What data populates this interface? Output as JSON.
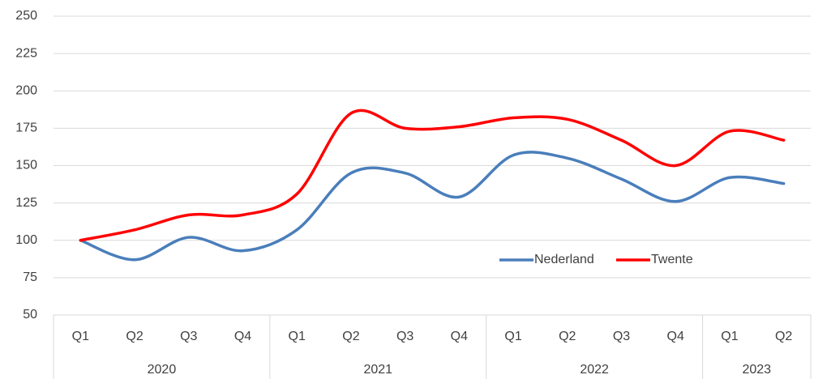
{
  "chart_data": {
    "type": "line",
    "category_groups": [
      {
        "label": "2020",
        "categories": [
          "Q1",
          "Q2",
          "Q3",
          "Q4"
        ]
      },
      {
        "label": "2021",
        "categories": [
          "Q1",
          "Q2",
          "Q3",
          "Q4"
        ]
      },
      {
        "label": "2022",
        "categories": [
          "Q1",
          "Q2",
          "Q3",
          "Q4"
        ]
      },
      {
        "label": "2023",
        "categories": [
          "Q1",
          "Q2"
        ]
      }
    ],
    "series": [
      {
        "name": "Nederland",
        "color": "#4a7ebb",
        "values": [
          100,
          87,
          102,
          93,
          107,
          145,
          145,
          129,
          157,
          155,
          141,
          126,
          142,
          138
        ]
      },
      {
        "name": "Twente",
        "color": "#ff0000",
        "values": [
          100,
          107,
          117,
          117,
          131,
          185,
          175,
          176,
          182,
          181,
          167,
          150,
          173,
          167
        ]
      }
    ],
    "ylim": [
      50,
      250
    ],
    "yticks": [
      50,
      75,
      100,
      125,
      150,
      175,
      200,
      225,
      250
    ],
    "grid": true,
    "smooth": true,
    "legend": "inside"
  }
}
